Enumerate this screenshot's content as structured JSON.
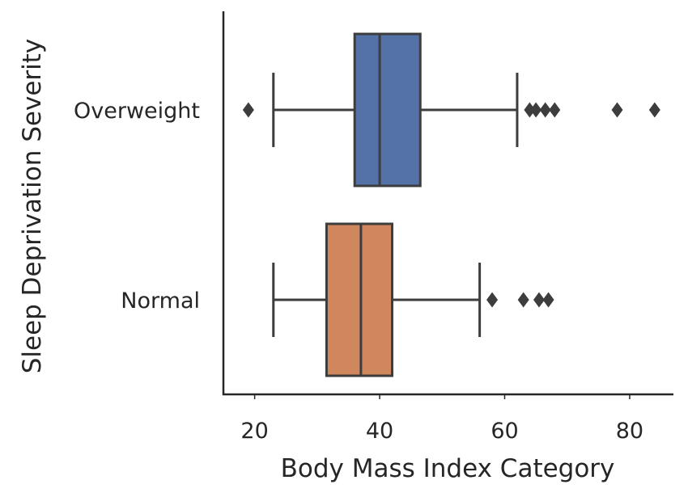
{
  "chart_data": {
    "type": "boxplot",
    "orientation": "horizontal",
    "xlabel": "Body Mass Index Category",
    "ylabel": "Sleep Deprivation Severity",
    "xlim": [
      15,
      87
    ],
    "xticks": [
      20,
      40,
      60,
      80
    ],
    "categories": [
      "Overweight",
      "Normal"
    ],
    "grid": false,
    "series": [
      {
        "name": "Overweight",
        "color": "#5471a8",
        "whisker_low": 23,
        "q1": 36,
        "median": 40,
        "q3": 46.5,
        "whisker_high": 62,
        "outliers": [
          19,
          64,
          65,
          66.5,
          68,
          78,
          84
        ]
      },
      {
        "name": "Normal",
        "color": "#d0875d",
        "whisker_low": 23,
        "q1": 31.5,
        "median": 37,
        "q3": 42,
        "whisker_high": 56,
        "outliers": [
          58,
          63,
          65.5,
          67
        ]
      }
    ]
  }
}
